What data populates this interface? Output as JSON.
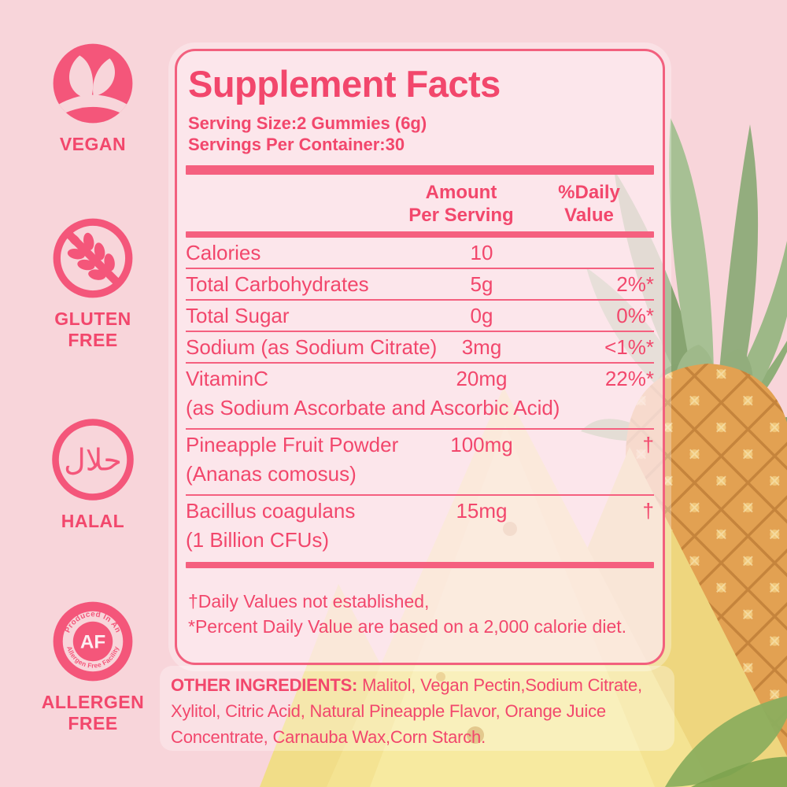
{
  "colors": {
    "background": "#f8d5da",
    "accent_pink": "#f2476c",
    "bar_pink": "#f5607f",
    "panel_fill": "rgba(253,235,239,0.78)",
    "pineapple_body": "#e2a152",
    "pineapple_leaf": "#93ad7e",
    "wedge_yellow": "#f4e392"
  },
  "badges": {
    "vegan": {
      "label": "VEGAN",
      "icon": "leaf-sprout-icon"
    },
    "gluten_free": {
      "label_line1": "GLUTEN",
      "label_line2": "FREE",
      "icon": "crossed-wheat-icon"
    },
    "halal": {
      "label": "HALAL",
      "arabic_text": "حلال",
      "icon": "halal-ring-icon"
    },
    "allergen_free": {
      "label_line1": "ALLERGEN",
      "label_line2": "FREE",
      "center_text": "AF",
      "ring_text_top": "Produced In An",
      "ring_text_bottom": "Allergen Free Facility",
      "icon": "allergen-free-seal-icon"
    }
  },
  "panel": {
    "title": "Supplement Facts",
    "serving_size": "Serving Size:2 Gummies (6g)",
    "servings_per_container": "Servings Per Container:30",
    "columns": {
      "amount_line1": "Amount",
      "amount_line2": "Per Serving",
      "dv_line1": "%Daily",
      "dv_line2": "Value"
    },
    "rows": [
      {
        "name": "Calories",
        "amount": "10",
        "dv": ""
      },
      {
        "name": "Total Carbohydrates",
        "amount": "5g",
        "dv": "2%*"
      },
      {
        "name": "Total Sugar",
        "amount": "0g",
        "dv": "0%*"
      },
      {
        "name": "Sodium (as Sodium Citrate)",
        "amount": "3mg",
        "dv": "<1%*"
      },
      {
        "name": "VitaminC",
        "name2": "(as Sodium Ascorbate and Ascorbic Acid)",
        "amount": "20mg",
        "dv": "22%*"
      },
      {
        "name": "Pineapple Fruit Powder",
        "name2": "(Ananas comosus)",
        "amount": "100mg",
        "dv": "†"
      },
      {
        "name": "Bacillus coagulans",
        "name2": "(1 Billion CFUs)",
        "amount": "15mg",
        "dv": "†"
      }
    ],
    "footnote_line1": "†Daily Values not established,",
    "footnote_line2": "*Percent Daily Value are based on a 2,000 calorie diet."
  },
  "other_ingredients": {
    "label": "OTHER INGREDIENTS:",
    "text": "Malitol, Vegan Pectin,Sodium Citrate, Xylitol, Citric Acid, Natural Pineapple Flavor, Orange Juice Concentrate, Carnauba Wax,Corn Starch."
  }
}
